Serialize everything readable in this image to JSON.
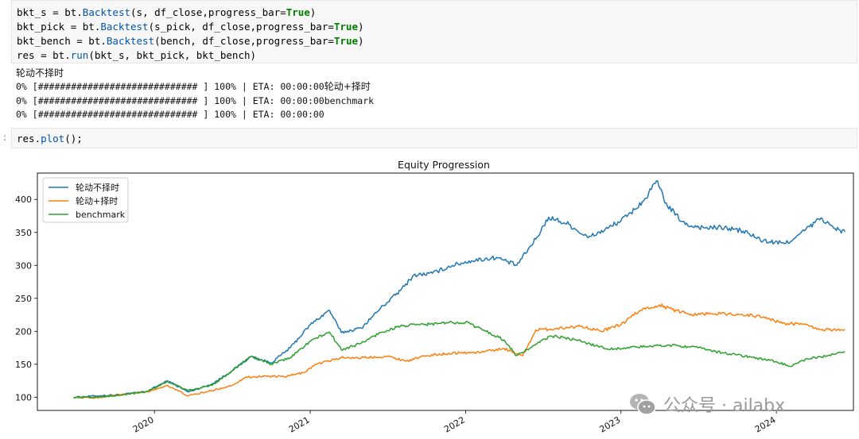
{
  "code_cell_1": {
    "lines": [
      [
        "bkt_s = bt.",
        "Backtest",
        "(s, df_close,progress_bar=",
        "True",
        ")"
      ],
      [
        "bkt_pick = bt.",
        "Backtest",
        "(s_pick, df_close,progress_bar=",
        "True",
        ")"
      ],
      [
        "bkt_bench = bt.",
        "Backtest",
        "(bench, df_close,progress_bar=",
        "True",
        ")"
      ],
      [
        "res = bt.",
        "run",
        "(bkt_s, bkt_pick, bkt_bench)",
        "",
        ""
      ]
    ]
  },
  "output": {
    "heading": "轮动不择时",
    "progress_prefix": "0% [############################# ] 100% | ETA: 00:00:00",
    "line1_suffix": "轮动+择时",
    "line2_suffix": "benchmark",
    "line3_suffix": ""
  },
  "code_cell_2": {
    "prompt": ":",
    "code_pre": "res.",
    "code_fn": "plot",
    "code_post": "();"
  },
  "watermark": {
    "text": "公众号 · ailabx"
  },
  "chart_data": {
    "type": "line",
    "title": "Equity Progression",
    "xlabel": "",
    "ylabel": "",
    "x_ticks": [
      "2020",
      "2021",
      "2022",
      "2023",
      "2024"
    ],
    "y_ticks": [
      100,
      150,
      200,
      250,
      300,
      350,
      400
    ],
    "ylim": [
      80,
      440
    ],
    "xlim": [
      "2019-04-01",
      "2024-06-30"
    ],
    "legend_placement": "top-left",
    "grid": false,
    "series": [
      {
        "name": "轮动不择时",
        "color": "#1f77b4",
        "points": [
          [
            "2019-06-25",
            100
          ],
          [
            "2019-08-15",
            102
          ],
          [
            "2019-10-15",
            104
          ],
          [
            "2019-12-15",
            109
          ],
          [
            "2020-02-01",
            125
          ],
          [
            "2020-03-20",
            108
          ],
          [
            "2020-05-15",
            120
          ],
          [
            "2020-07-01",
            140
          ],
          [
            "2020-08-15",
            162
          ],
          [
            "2020-10-01",
            152
          ],
          [
            "2020-11-15",
            175
          ],
          [
            "2021-01-01",
            210
          ],
          [
            "2021-02-15",
            232
          ],
          [
            "2021-03-15",
            198
          ],
          [
            "2021-05-01",
            205
          ],
          [
            "2021-06-15",
            235
          ],
          [
            "2021-08-01",
            262
          ],
          [
            "2021-09-01",
            285
          ],
          [
            "2021-10-15",
            288
          ],
          [
            "2021-12-01",
            300
          ],
          [
            "2022-01-15",
            307
          ],
          [
            "2022-03-15",
            312
          ],
          [
            "2022-05-01",
            300
          ],
          [
            "2022-06-15",
            340
          ],
          [
            "2022-07-15",
            373
          ],
          [
            "2022-09-01",
            362
          ],
          [
            "2022-10-15",
            342
          ],
          [
            "2022-12-01",
            356
          ],
          [
            "2023-01-15",
            374
          ],
          [
            "2023-03-01",
            402
          ],
          [
            "2023-03-25",
            428
          ],
          [
            "2023-04-20",
            390
          ],
          [
            "2023-06-01",
            362
          ],
          [
            "2023-07-15",
            357
          ],
          [
            "2023-09-01",
            357
          ],
          [
            "2023-10-15",
            352
          ],
          [
            "2023-12-01",
            337
          ],
          [
            "2024-01-20",
            333
          ],
          [
            "2024-02-15",
            342
          ],
          [
            "2024-04-15",
            372
          ],
          [
            "2024-05-15",
            356
          ],
          [
            "2024-06-10",
            351
          ]
        ]
      },
      {
        "name": "轮动+择时",
        "color": "#ff7f0e",
        "points": [
          [
            "2019-06-25",
            100
          ],
          [
            "2019-08-15",
            99
          ],
          [
            "2019-10-15",
            104
          ],
          [
            "2019-12-15",
            108
          ],
          [
            "2020-02-01",
            118
          ],
          [
            "2020-03-20",
            102
          ],
          [
            "2020-05-15",
            110
          ],
          [
            "2020-07-01",
            118
          ],
          [
            "2020-08-01",
            130
          ],
          [
            "2020-09-15",
            132
          ],
          [
            "2020-11-01",
            131
          ],
          [
            "2020-12-15",
            137
          ],
          [
            "2021-01-15",
            150
          ],
          [
            "2021-03-15",
            160
          ],
          [
            "2021-05-01",
            160
          ],
          [
            "2021-07-01",
            162
          ],
          [
            "2021-08-15",
            155
          ],
          [
            "2021-10-01",
            163
          ],
          [
            "2021-12-01",
            167
          ],
          [
            "2022-02-01",
            168
          ],
          [
            "2022-04-01",
            174
          ],
          [
            "2022-05-15",
            163
          ],
          [
            "2022-06-15",
            202
          ],
          [
            "2022-08-01",
            204
          ],
          [
            "2022-10-01",
            208
          ],
          [
            "2022-11-15",
            200
          ],
          [
            "2023-01-01",
            210
          ],
          [
            "2023-02-15",
            232
          ],
          [
            "2023-04-01",
            240
          ],
          [
            "2023-05-01",
            233
          ],
          [
            "2023-06-15",
            226
          ],
          [
            "2023-08-01",
            227
          ],
          [
            "2023-10-01",
            226
          ],
          [
            "2023-12-01",
            222
          ],
          [
            "2024-01-15",
            212
          ],
          [
            "2024-03-01",
            211
          ],
          [
            "2024-04-15",
            202
          ],
          [
            "2024-06-10",
            203
          ]
        ]
      },
      {
        "name": "benchmark",
        "color": "#2ca02c",
        "points": [
          [
            "2019-06-25",
            100
          ],
          [
            "2019-08-15",
            100
          ],
          [
            "2019-10-15",
            103
          ],
          [
            "2019-12-15",
            109
          ],
          [
            "2020-02-01",
            124
          ],
          [
            "2020-03-20",
            110
          ],
          [
            "2020-05-15",
            118
          ],
          [
            "2020-07-01",
            140
          ],
          [
            "2020-08-15",
            162
          ],
          [
            "2020-10-01",
            150
          ],
          [
            "2020-11-15",
            160
          ],
          [
            "2021-01-01",
            185
          ],
          [
            "2021-02-15",
            199
          ],
          [
            "2021-03-15",
            172
          ],
          [
            "2021-05-01",
            182
          ],
          [
            "2021-06-15",
            198
          ],
          [
            "2021-08-01",
            208
          ],
          [
            "2021-09-15",
            210
          ],
          [
            "2021-11-01",
            212
          ],
          [
            "2022-01-01",
            214
          ],
          [
            "2022-02-15",
            201
          ],
          [
            "2022-04-01",
            187
          ],
          [
            "2022-05-01",
            163
          ],
          [
            "2022-06-15",
            180
          ],
          [
            "2022-07-20",
            193
          ],
          [
            "2022-09-01",
            189
          ],
          [
            "2022-10-15",
            182
          ],
          [
            "2022-12-01",
            173
          ],
          [
            "2023-01-15",
            175
          ],
          [
            "2023-03-01",
            177
          ],
          [
            "2023-05-01",
            179
          ],
          [
            "2023-07-01",
            175
          ],
          [
            "2023-09-01",
            167
          ],
          [
            "2023-11-01",
            161
          ],
          [
            "2024-01-01",
            154
          ],
          [
            "2024-02-01",
            147
          ],
          [
            "2024-03-15",
            158
          ],
          [
            "2024-05-01",
            163
          ],
          [
            "2024-06-10",
            168
          ]
        ]
      }
    ]
  }
}
